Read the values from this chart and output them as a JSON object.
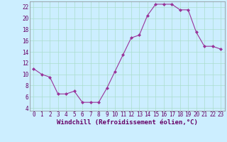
{
  "x": [
    0,
    1,
    2,
    3,
    4,
    5,
    6,
    7,
    8,
    9,
    10,
    11,
    12,
    13,
    14,
    15,
    16,
    17,
    18,
    19,
    20,
    21,
    22,
    23
  ],
  "y": [
    11,
    10,
    9.5,
    6.5,
    6.5,
    7,
    5,
    5,
    5,
    7.5,
    10.5,
    13.5,
    16.5,
    17,
    20.5,
    22.5,
    22.5,
    22.5,
    21.5,
    21.5,
    17.5,
    15,
    15,
    14.5
  ],
  "line_color": "#993399",
  "marker": "D",
  "marker_size": 2,
  "bg_color": "#cceeff",
  "grid_color": "#aaddcc",
  "xlabel": "Windchill (Refroidissement éolien,°C)",
  "xlim": [
    -0.5,
    23.5
  ],
  "ylim": [
    3.5,
    23
  ],
  "yticks": [
    4,
    6,
    8,
    10,
    12,
    14,
    16,
    18,
    20,
    22
  ],
  "xticks": [
    0,
    1,
    2,
    3,
    4,
    5,
    6,
    7,
    8,
    9,
    10,
    11,
    12,
    13,
    14,
    15,
    16,
    17,
    18,
    19,
    20,
    21,
    22,
    23
  ],
  "tick_fontsize": 5.5,
  "xlabel_fontsize": 6.5
}
